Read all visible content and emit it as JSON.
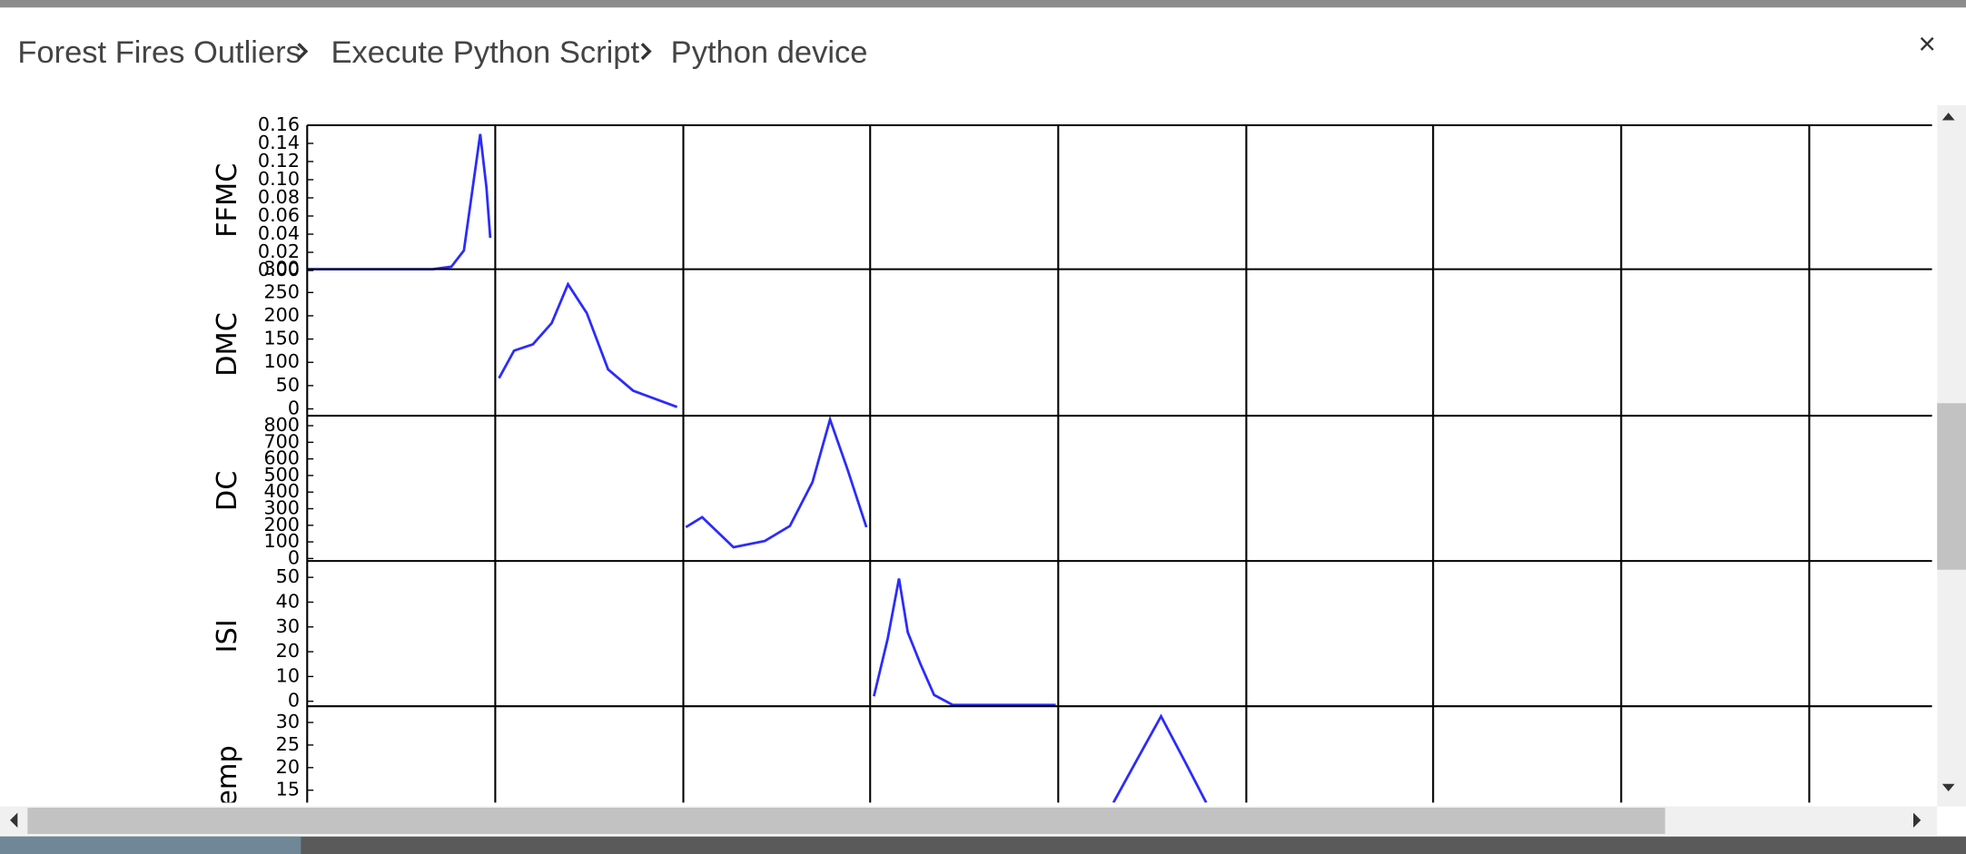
{
  "breadcrumb": [
    "Forest Fires Outliers",
    "Execute Python Script",
    "Python device"
  ],
  "close_label": "×",
  "matrix": {
    "rows": [
      {
        "label": "FFMC",
        "ylim": [
          0,
          0.16
        ],
        "yticks": [
          {
            "value": 0,
            "label": "0.00"
          },
          {
            "value": 0.02,
            "label": "0.02"
          },
          {
            "value": 0.04,
            "label": "0.04"
          },
          {
            "value": 0.06,
            "label": "0.06"
          },
          {
            "value": 0.08,
            "label": "0.08"
          },
          {
            "value": 0.1,
            "label": "0.10"
          },
          {
            "value": 0.12,
            "label": "0.12"
          },
          {
            "value": 0.14,
            "label": "0.14"
          },
          {
            "value": 0.16,
            "label": "0.16"
          }
        ]
      },
      {
        "label": "DMC",
        "ylim": [
          -12,
          300
        ],
        "yticks": [
          0,
          50,
          100,
          150,
          200,
          250,
          300
        ]
      },
      {
        "label": "DC",
        "ylim": [
          -15,
          860
        ],
        "yticks": [
          0,
          100,
          200,
          300,
          400,
          500,
          600,
          700,
          800
        ]
      },
      {
        "label": "ISI",
        "ylim": [
          -2,
          56.6
        ],
        "yticks": [
          0,
          10,
          20,
          30,
          40,
          50
        ]
      },
      {
        "label": "temp",
        "ylim": [
          1.4,
          33.6
        ],
        "yticks": [
          15,
          20,
          25,
          30
        ]
      }
    ]
  }
}
